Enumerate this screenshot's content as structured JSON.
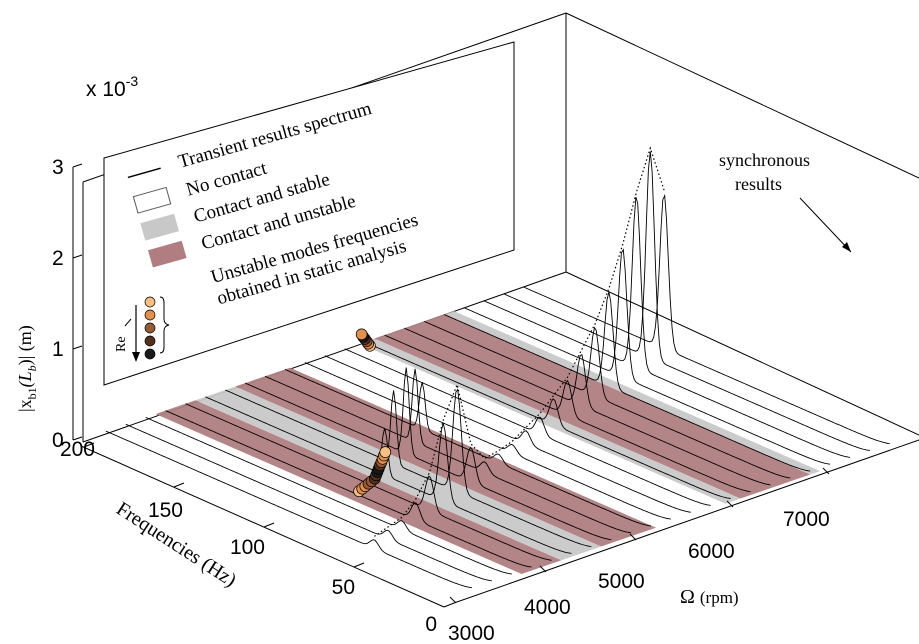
{
  "chart_data": {
    "type": "waterfall-3d",
    "multiplier_label": "x 10",
    "multiplier_exp": "-3",
    "z_axis": {
      "label_prefix": "|x",
      "label_sub": "b1",
      "label_mid": "(L",
      "label_sub2": "b",
      "label_suffix": ")| (m)",
      "ticks": [
        "0",
        "1",
        "2",
        "3"
      ],
      "range": [
        0,
        3
      ]
    },
    "freq_axis": {
      "label": "Frequencies (Hz)",
      "ticks": [
        "0",
        "50",
        "100",
        "150",
        "200"
      ],
      "range": [
        0,
        200
      ]
    },
    "omega_axis": {
      "label_symbol": "Ω",
      "label_unit": "(rpm)",
      "ticks": [
        "3000",
        "4000",
        "5000",
        "6000",
        "7000"
      ],
      "range": [
        3000,
        7600
      ]
    },
    "legend": {
      "entries": [
        {
          "label": "Transient results spectrum",
          "kind": "line"
        },
        {
          "label": "No contact",
          "kind": "box",
          "color": "#ffffff"
        },
        {
          "label": "Contact and stable",
          "kind": "box",
          "color": "#c8c8c8"
        },
        {
          "label": "Contact and unstable",
          "kind": "box",
          "color": "#b07e80"
        }
      ],
      "unstable_line1": "Unstable modes frequencies",
      "unstable_line2": "obtained in static analysis",
      "re_label": "Re",
      "marker_colors": [
        "#f5c082",
        "#e4904a",
        "#9a5a32",
        "#55301a",
        "#1a1a1a"
      ]
    },
    "annotation": {
      "line1": "synchronous",
      "line2": "results"
    },
    "bands": [
      {
        "omega_start": 3700,
        "omega_end": 4100,
        "state": "contact-unstable",
        "color": "#b07e80"
      },
      {
        "omega_start": 4100,
        "omega_end": 4500,
        "state": "contact-stable",
        "color": "#c8c8c8"
      },
      {
        "omega_start": 4500,
        "omega_end": 5050,
        "state": "contact-unstable",
        "color": "#b07e80"
      },
      {
        "omega_start": 5050,
        "omega_end": 5750,
        "state": "no-contact",
        "color": "#ffffff"
      },
      {
        "omega_start": 5750,
        "omega_end": 5900,
        "state": "contact-stable",
        "color": "#c8c8c8"
      },
      {
        "omega_start": 5900,
        "omega_end": 6600,
        "state": "contact-unstable",
        "color": "#b07e80"
      },
      {
        "omega_start": 6600,
        "omega_end": 6700,
        "state": "contact-stable",
        "color": "#c8c8c8"
      }
    ],
    "series": {
      "omega": [
        3200,
        3400,
        3600,
        3800,
        4000,
        4200,
        4400,
        4600,
        4800,
        5000,
        5200,
        5400,
        5600,
        5800,
        6000,
        6200,
        6400,
        6600,
        6800,
        7000,
        7200,
        7400
      ],
      "sync_peak": [
        0.1,
        0.1,
        0.1,
        0.2,
        0.4,
        0.9,
        1.2,
        0.4,
        0.12,
        0.1,
        0.1,
        0.15,
        0.2,
        0.3,
        0.4,
        0.6,
        0.8,
        1.1,
        1.5,
        2.0,
        2.4,
        1.8
      ],
      "subsync_peak_freq": [
        0,
        0,
        0,
        0,
        0,
        102,
        108,
        112,
        118,
        125,
        0,
        0,
        0,
        0,
        0,
        0,
        0,
        0,
        0,
        0,
        0,
        0
      ],
      "subsync_peak_amp": [
        0,
        0,
        0,
        0,
        0,
        0.55,
        0.85,
        1.0,
        0.85,
        0.55,
        0,
        0,
        0,
        0,
        0,
        0,
        0,
        0,
        0,
        0,
        0,
        0
      ]
    },
    "unstable_mode_markers": [
      {
        "group": "low",
        "omega": [
          3850,
          3900,
          3950,
          4000,
          4050,
          4100,
          4150,
          4200,
          4250,
          4300,
          4350,
          4400,
          4450,
          4500
        ],
        "freq": [
          97,
          98,
          99,
          100,
          101,
          102,
          104,
          106,
          108,
          110,
          112,
          114,
          116,
          118
        ],
        "color_index": [
          0,
          1,
          1,
          2,
          2,
          3,
          3,
          4,
          4,
          3,
          2,
          1,
          1,
          0
        ]
      },
      {
        "group": "high",
        "omega": [
          5780,
          5800,
          5820,
          5840,
          5860,
          5880
        ],
        "freq": [
          196,
          198,
          200,
          202,
          204,
          206
        ],
        "color_index": [
          0,
          1,
          2,
          3,
          4,
          1
        ]
      }
    ],
    "grid": false
  }
}
